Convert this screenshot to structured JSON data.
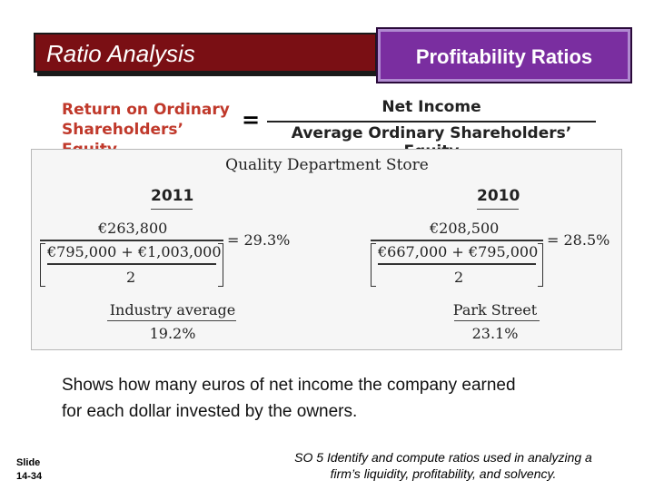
{
  "header": {
    "section_title": "Ratio Analysis",
    "topic_title": "Profitability Ratios"
  },
  "formula": {
    "name_line1": "Return on Ordinary",
    "name_line2": "Shareholders’ Equity",
    "equals": "=",
    "numerator": "Net Income",
    "denominator": "Average Ordinary Shareholders’ Equity"
  },
  "panel": {
    "title": "Quality Department Store",
    "years": [
      {
        "year": "2011",
        "numerator": "€263,800",
        "denominator": "€795,000 + €1,003,000",
        "divisor": "2",
        "result": "= 29.3%",
        "benchmark_label": "Industry average",
        "benchmark_value": "19.2%"
      },
      {
        "year": "2010",
        "numerator": "€208,500",
        "denominator": "€667,000 + €795,000",
        "divisor": "2",
        "result": "= 28.5%",
        "benchmark_label": "Park Street",
        "benchmark_value": "23.1%"
      }
    ]
  },
  "description": {
    "line1": "Shows how many euros of net income the company earned",
    "line2": "for each dollar invested by the owners."
  },
  "footer": {
    "slide_label": "Slide",
    "slide_number": "14-34",
    "objective_line1": "SO 5  Identify and compute ratios used in analyzing a",
    "objective_line2": "firm’s liquidity, profitability, and solvency."
  }
}
